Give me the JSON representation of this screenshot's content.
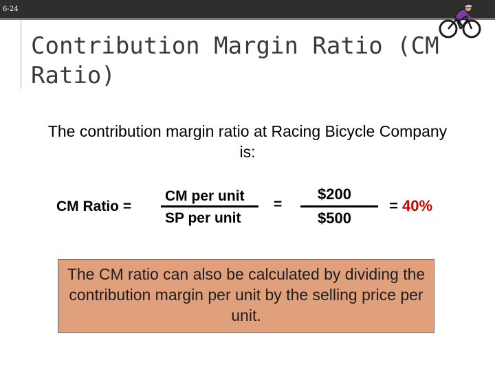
{
  "slide": {
    "number": "6-24",
    "title": "Contribution Margin Ratio (CM Ratio)",
    "intro": "The contribution margin ratio at Racing Bicycle Company is:"
  },
  "formula": {
    "label": "CM Ratio  =",
    "numerator": "CM per unit",
    "denominator": "SP per unit",
    "equals": "=",
    "value_numerator": "$200",
    "value_denominator": "$500",
    "result_prefix": "= ",
    "result": "40%"
  },
  "note": {
    "text": "The CM ratio can also be calculated by dividing the contribution margin per unit by the selling price per unit."
  },
  "colors": {
    "top_bar": "#2e2e2e",
    "note_fill": "#e0a07c",
    "result": "#cc0000",
    "bike_jersey": "#7a3fa0"
  },
  "icons": {
    "logo": "cyclist-icon"
  }
}
